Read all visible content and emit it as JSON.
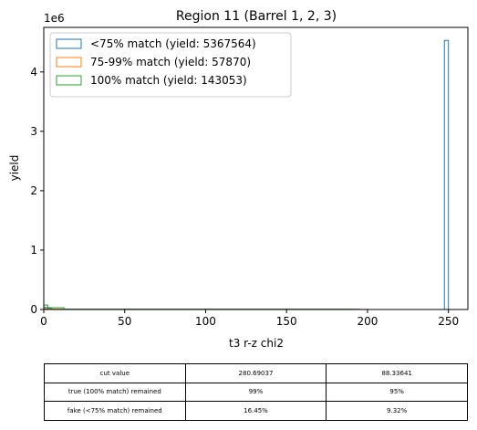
{
  "chart_data": {
    "type": "histogram",
    "title": "Region 11 (Barrel 1, 2, 3)",
    "xlabel": "t3 r-z chi2",
    "ylabel": "yield",
    "y_offset_text": "1e6",
    "xlim": [
      0,
      262
    ],
    "ylim": [
      0,
      4.75
    ],
    "y_scale": 1000000,
    "bin_width": 2.5,
    "x_ticks": [
      0,
      50,
      100,
      150,
      200,
      250
    ],
    "y_ticks": [
      0,
      1,
      2,
      3,
      4
    ],
    "legend_position": "top-left",
    "series": [
      {
        "name": "<75% match (yield: 5367564)",
        "color": "#1f77b4",
        "bins": [
          [
            0,
            2.5,
            0.035
          ],
          [
            2.5,
            5,
            0.02
          ],
          [
            5,
            195,
            0.005
          ],
          [
            247.5,
            250,
            4.53
          ]
        ]
      },
      {
        "name": "75-99% match (yield: 57870)",
        "color": "#ff7f0e",
        "bins": [
          [
            0,
            2.5,
            0.015
          ],
          [
            2.5,
            10,
            0.008
          ],
          [
            10,
            200,
            0.002
          ]
        ]
      },
      {
        "name": "100% match (yield: 143053)",
        "color": "#2ca02c",
        "bins": [
          [
            0,
            2.5,
            0.075
          ],
          [
            2.5,
            12.5,
            0.03
          ],
          [
            12.5,
            190,
            0.003
          ]
        ]
      }
    ]
  },
  "table": {
    "rows": [
      [
        "cut value",
        "280.69037",
        "88.33641"
      ],
      [
        "true (100% match) remained",
        "99%",
        "95%"
      ],
      [
        "fake (<75% match) remained",
        "16.45%",
        "9.32%"
      ]
    ]
  }
}
